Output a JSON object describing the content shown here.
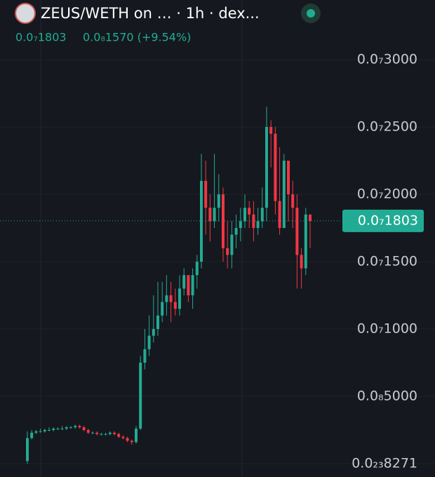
{
  "chart_data": {
    "type": "candlestick",
    "title": "ZEUS/WETH on … · 1h · dex...",
    "legend_close": "0.0₇1803",
    "legend_change": "0.0₈1570 (+9.54%)",
    "up_color": "#22ab94",
    "down_color": "#f23645",
    "grid": true,
    "ylim": [
      -9.9e-11,
      3.443e-09
    ],
    "yticks": [
      {
        "value": 8.271e-25,
        "label": "0.0₂₃8271"
      },
      {
        "value": 5e-10,
        "label": "0.0₈5000"
      },
      {
        "value": 1e-09,
        "label": "0.0₇1000"
      },
      {
        "value": 1.5e-09,
        "label": "0.0₇1500"
      },
      {
        "value": 2e-09,
        "label": "0.0₇2000"
      },
      {
        "value": 2.5e-09,
        "label": "0.0₇2500"
      },
      {
        "value": 3e-09,
        "label": "0.0₇3000"
      }
    ],
    "last_price": {
      "value": 1.803e-09,
      "label": "0.0₇1803"
    },
    "open": [
      2e-11,
      1.9e-10,
      2.3e-10,
      2.4e-10,
      2.4e-10,
      2.5e-10,
      2.5e-10,
      2.6e-10,
      2.6e-10,
      2.6e-10,
      2.7e-10,
      2.7e-10,
      2.8e-10,
      2.7e-10,
      2.5e-10,
      2.3e-10,
      2.3e-10,
      2.2e-10,
      2.2e-10,
      2.2e-10,
      2.3e-10,
      2.2e-10,
      2e-10,
      1.9e-10,
      1.7e-10,
      1.6e-10,
      2.6e-10,
      7.5e-10,
      8.5e-10,
      9.5e-10,
      1e-09,
      1.1e-09,
      1.2e-09,
      1.25e-09,
      1.2e-09,
      1.15e-09,
      1.3e-09,
      1.4e-09,
      1.25e-09,
      1.4e-09,
      1.5e-09,
      2.1e-09,
      1.9e-09,
      1.8e-09,
      1.9e-09,
      2e-09,
      1.6e-09,
      1.55e-09,
      1.7e-09,
      1.75e-09,
      1.8e-09,
      1.9e-09,
      1.85e-09,
      1.75e-09,
      1.8e-09,
      1.9e-09,
      2.5e-09,
      2.45e-09,
      1.95e-09,
      1.75e-09,
      2.25e-09,
      2e-09,
      1.9e-09,
      1.55e-09,
      1.45e-09,
      1.85e-09
    ],
    "high": [
      2.4e-10,
      2.5e-10,
      2.5e-10,
      2.6e-10,
      2.6e-10,
      2.7e-10,
      2.7e-10,
      2.7e-10,
      2.8e-10,
      2.8e-10,
      2.8e-10,
      2.9e-10,
      2.9e-10,
      2.8e-10,
      2.6e-10,
      2.4e-10,
      2.4e-10,
      2.3e-10,
      2.3e-10,
      2.4e-10,
      2.4e-10,
      2.3e-10,
      2.1e-10,
      2e-10,
      1.8e-10,
      2.8e-10,
      8e-10,
      1e-09,
      1.1e-09,
      1.25e-09,
      1.35e-09,
      1.35e-09,
      1.4e-09,
      1.35e-09,
      1.3e-09,
      1.4e-09,
      1.45e-09,
      1.4e-09,
      1.45e-09,
      1.55e-09,
      2.3e-09,
      2.25e-09,
      2e-09,
      2.3e-09,
      2.15e-09,
      2.05e-09,
      1.8e-09,
      1.8e-09,
      1.85e-09,
      1.9e-09,
      2e-09,
      1.95e-09,
      1.95e-09,
      1.9e-09,
      2.05e-09,
      2.65e-09,
      2.55e-09,
      2.5e-09,
      2.35e-09,
      2.3e-09,
      2.25e-09,
      2.1e-09,
      2e-09,
      1.6e-09,
      1.9e-09,
      1.85e-09
    ],
    "low": [
      0.0,
      1.8e-10,
      2.2e-10,
      2.3e-10,
      2.3e-10,
      2.4e-10,
      2.4e-10,
      2.5e-10,
      2.5e-10,
      2.5e-10,
      2.6e-10,
      2.6e-10,
      2.6e-10,
      2.4e-10,
      2.2e-10,
      2.2e-10,
      2.1e-10,
      2.1e-10,
      2.1e-10,
      2.1e-10,
      2.1e-10,
      1.9e-10,
      1.8e-10,
      1.6e-10,
      1.4e-10,
      1.5e-10,
      2.5e-10,
      7e-10,
      8e-10,
      9e-10,
      9.5e-10,
      1.05e-09,
      1.1e-09,
      1.05e-09,
      1.1e-09,
      1.1e-09,
      1.25e-09,
      1.2e-09,
      1.15e-09,
      1.3e-09,
      1.45e-09,
      1.7e-09,
      1.65e-09,
      1.75e-09,
      1.8e-09,
      1.5e-09,
      1.45e-09,
      1.45e-09,
      1.6e-09,
      1.65e-09,
      1.75e-09,
      1.75e-09,
      1.65e-09,
      1.7e-09,
      1.75e-09,
      1.8e-09,
      2.2e-09,
      1.85e-09,
      1.7e-09,
      1.75e-09,
      1.8e-09,
      1.75e-09,
      1.3e-09,
      1.3e-09,
      1.4e-09,
      1.6e-09
    ],
    "close": [
      1.9e-10,
      2.3e-10,
      2.4e-10,
      2.4e-10,
      2.5e-10,
      2.5e-10,
      2.6e-10,
      2.6e-10,
      2.6e-10,
      2.7e-10,
      2.7e-10,
      2.8e-10,
      2.7e-10,
      2.5e-10,
      2.3e-10,
      2.3e-10,
      2.2e-10,
      2.2e-10,
      2.2e-10,
      2.3e-10,
      2.2e-10,
      2e-10,
      1.9e-10,
      1.7e-10,
      1.6e-10,
      2.6e-10,
      7.5e-10,
      8.5e-10,
      9.5e-10,
      1e-09,
      1.1e-09,
      1.2e-09,
      1.25e-09,
      1.2e-09,
      1.15e-09,
      1.3e-09,
      1.4e-09,
      1.25e-09,
      1.4e-09,
      1.5e-09,
      2.1e-09,
      1.9e-09,
      1.8e-09,
      1.9e-09,
      2e-09,
      1.6e-09,
      1.55e-09,
      1.7e-09,
      1.75e-09,
      1.8e-09,
      1.9e-09,
      1.85e-09,
      1.75e-09,
      1.8e-09,
      1.9e-09,
      2.5e-09,
      2.45e-09,
      1.95e-09,
      1.75e-09,
      2.25e-09,
      2e-09,
      1.9e-09,
      1.55e-09,
      1.45e-09,
      1.85e-09,
      1.803e-09
    ]
  }
}
